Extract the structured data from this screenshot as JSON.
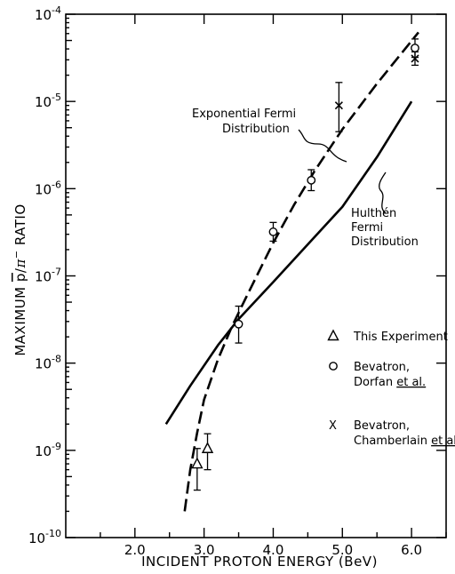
{
  "chart_data": {
    "type": "scatter",
    "xlabel": "INCIDENT PROTON ENERGY (BeV)",
    "ylabel_parts": [
      "MAXIMUM ",
      "p",
      "/",
      "π",
      "−",
      " RATIO"
    ],
    "x_scale": "linear",
    "y_scale": "log",
    "xlim": [
      1.0,
      6.5
    ],
    "ylim_exp": [
      -10,
      -4
    ],
    "x_ticks": [
      2.0,
      3.0,
      4.0,
      5.0,
      6.0
    ],
    "x_tick_labels": [
      "2.0",
      "3.0",
      "4.0",
      "5.0",
      "6.0"
    ],
    "y_tick_exps": [
      -10,
      -9,
      -8,
      -7,
      -6,
      -5,
      -4
    ],
    "y_tick_base": "10",
    "y_tick_exp_labels": [
      "-10",
      "-9",
      "-8",
      "-7",
      "-6",
      "-5",
      "-4"
    ],
    "curves": [
      {
        "label_lines": [
          "Exponential Fermi",
          "Distribution"
        ],
        "style": "dashed",
        "points": [
          [
            2.72,
            2e-10
          ],
          [
            2.8,
            6e-10
          ],
          [
            2.9,
            1.6e-09
          ],
          [
            3.0,
            3.8e-09
          ],
          [
            3.2,
            1.1e-08
          ],
          [
            3.4,
            2.6e-08
          ],
          [
            3.6,
            5.5e-08
          ],
          [
            3.8,
            1.15e-07
          ],
          [
            4.0,
            2.4e-07
          ],
          [
            4.3,
            6.5e-07
          ],
          [
            4.6,
            1.6e-06
          ],
          [
            5.0,
            4.8e-06
          ],
          [
            5.5,
            1.6e-05
          ],
          [
            6.1,
            6.2e-05
          ]
        ]
      },
      {
        "label_lines": [
          "Hulthén",
          "Fermi",
          "Distribution"
        ],
        "style": "solid",
        "points": [
          [
            2.45,
            2e-09
          ],
          [
            2.8,
            5.5e-09
          ],
          [
            3.2,
            1.6e-08
          ],
          [
            3.5,
            3.2e-08
          ],
          [
            4.0,
            8.5e-08
          ],
          [
            4.5,
            2.3e-07
          ],
          [
            5.0,
            6.2e-07
          ],
          [
            5.5,
            2.3e-06
          ],
          [
            6.0,
            1e-05
          ]
        ]
      }
    ],
    "series": [
      {
        "name": "This Experiment",
        "marker": "triangle",
        "points": [
          {
            "x": 2.9,
            "y": 7e-10,
            "ylo": 3.5e-10,
            "yhi": 1.05e-09
          },
          {
            "x": 3.05,
            "y": 1.05e-09,
            "ylo": 6e-10,
            "yhi": 1.55e-09
          }
        ]
      },
      {
        "name_lines": [
          "Bevatron,",
          "Dorfan et al."
        ],
        "marker": "circle",
        "points": [
          {
            "x": 3.5,
            "y": 2.8e-08,
            "ylo": 1.7e-08,
            "yhi": 4.5e-08
          },
          {
            "x": 4.0,
            "y": 3.2e-07,
            "ylo": 2.5e-07,
            "yhi": 4.1e-07
          },
          {
            "x": 4.55,
            "y": 1.25e-06,
            "ylo": 9.5e-07,
            "yhi": 1.65e-06
          },
          {
            "x": 6.05,
            "y": 4.1e-05,
            "ylo": 3.2e-05,
            "yhi": 5.2e-05
          }
        ]
      },
      {
        "name_lines": [
          "Bevatron,",
          "Chamberlain et al."
        ],
        "marker": "x",
        "points": [
          {
            "x": 4.95,
            "y": 9e-06,
            "ylo": 4.5e-06,
            "yhi": 1.65e-05
          },
          {
            "x": 6.05,
            "y": 3.1e-05,
            "ylo": 2.6e-05,
            "yhi": 3.7e-05
          }
        ]
      }
    ]
  }
}
